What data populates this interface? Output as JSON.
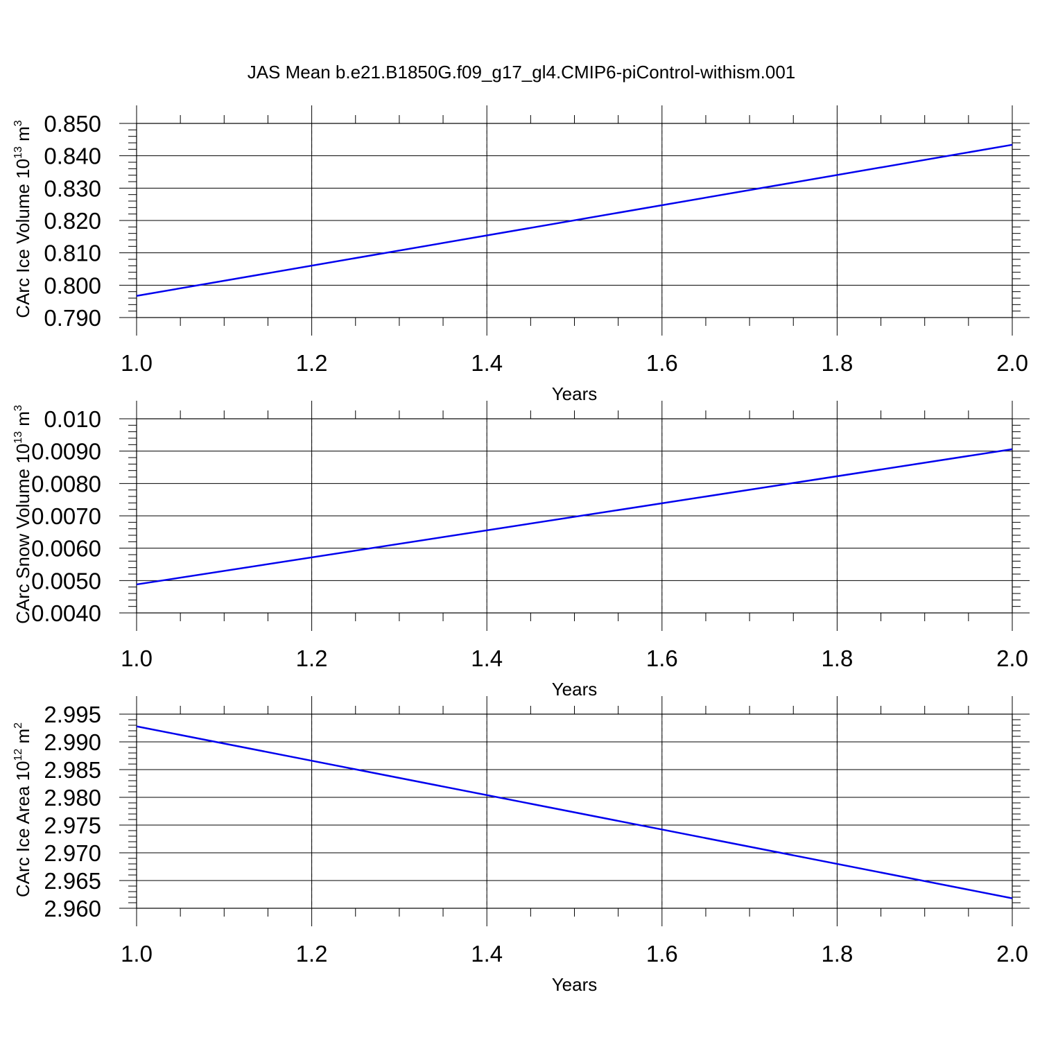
{
  "figure": {
    "title": "JAS Mean b.e21.B1850G.f09_g17_gl4.CMIP6-piControl-withism.001"
  },
  "colors": {
    "series": "#0000ee",
    "frame": "#000000",
    "grid": "#888888"
  },
  "chart_data": [
    {
      "type": "line",
      "ylabel": {
        "text": "CArc Ice Volume 10",
        "exp": "13",
        "unit": " m",
        "unit_exp": "3"
      },
      "xlabel": "Years",
      "xlim": [
        1.0,
        2.0
      ],
      "ylim": [
        0.79,
        0.85
      ],
      "x_ticks": [
        "1.0",
        "1.2",
        "1.4",
        "1.6",
        "1.8",
        "2.0"
      ],
      "y_ticks": [
        "0.850",
        "0.840",
        "0.830",
        "0.820",
        "0.810",
        "0.800",
        "0.790"
      ],
      "grid": "vertical dashed",
      "series": [
        {
          "x": [
            1.0,
            2.0
          ],
          "values": [
            0.7967,
            0.8434
          ]
        }
      ]
    },
    {
      "type": "line",
      "ylabel": {
        "text": "CArc Snow Volume 10",
        "exp": "13",
        "unit": " m",
        "unit_exp": "3"
      },
      "xlabel": "Years",
      "xlim": [
        1.0,
        2.0
      ],
      "ylim": [
        0.004,
        0.01
      ],
      "x_ticks": [
        "1.0",
        "1.2",
        "1.4",
        "1.6",
        "1.8",
        "2.0"
      ],
      "y_ticks": [
        "0.010",
        "0.0090",
        "0.0080",
        "0.0070",
        "0.0060",
        "0.0050",
        "0.0040"
      ],
      "grid": "vertical dashed",
      "series": [
        {
          "x": [
            1.0,
            2.0
          ],
          "values": [
            0.00488,
            0.00906
          ]
        }
      ]
    },
    {
      "type": "line",
      "ylabel": {
        "text": "CArc Ice Area 10",
        "exp": "12",
        "unit": " m",
        "unit_exp": "2"
      },
      "xlabel": "Years",
      "xlim": [
        1.0,
        2.0
      ],
      "ylim": [
        2.96,
        2.995
      ],
      "x_ticks": [
        "1.0",
        "1.2",
        "1.4",
        "1.6",
        "1.8",
        "2.0"
      ],
      "y_ticks": [
        "2.995",
        "2.990",
        "2.985",
        "2.980",
        "2.975",
        "2.970",
        "2.965",
        "2.960"
      ],
      "grid": "vertical dashed",
      "series": [
        {
          "x": [
            1.0,
            2.0
          ],
          "values": [
            2.9928,
            2.9618
          ]
        }
      ]
    }
  ]
}
